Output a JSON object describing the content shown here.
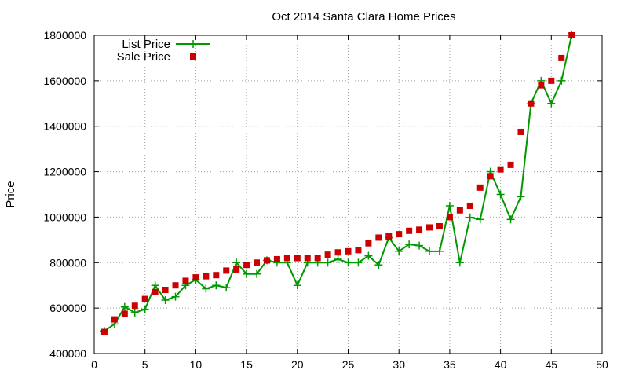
{
  "chart_data": {
    "type": "line",
    "title": "Oct 2014 Santa Clara Home Prices",
    "xlabel": "",
    "ylabel": "Price",
    "xlim": [
      0,
      50
    ],
    "ylim": [
      400000,
      1800000
    ],
    "x_ticks": [
      0,
      5,
      10,
      15,
      20,
      25,
      30,
      35,
      40,
      45,
      50
    ],
    "y_ticks": [
      400000,
      600000,
      800000,
      1000000,
      1200000,
      1400000,
      1600000,
      1800000
    ],
    "grid": true,
    "legend_position": "top-left",
    "series": [
      {
        "name": "List Price",
        "style": "line-with-plus-markers",
        "color": "#009900",
        "x": [
          1,
          2,
          3,
          4,
          5,
          6,
          7,
          8,
          9,
          10,
          11,
          12,
          13,
          14,
          15,
          16,
          17,
          18,
          19,
          20,
          21,
          22,
          23,
          24,
          25,
          26,
          27,
          28,
          29,
          30,
          31,
          32,
          33,
          34,
          35,
          36,
          37,
          38,
          39,
          40,
          41,
          42,
          43,
          44,
          45,
          46,
          47
        ],
        "values": [
          499000,
          530000,
          605000,
          580000,
          595000,
          700000,
          635000,
          650000,
          700000,
          725000,
          685000,
          700000,
          690000,
          800000,
          750000,
          750000,
          810000,
          800000,
          800000,
          700000,
          800000,
          800000,
          800000,
          815000,
          800000,
          800000,
          830000,
          790000,
          910000,
          850000,
          880000,
          875000,
          850000,
          850000,
          1050000,
          800000,
          999000,
          990000,
          1200000,
          1100000,
          990000,
          1090000,
          1500000,
          1600000,
          1500000,
          1600000,
          1800000
        ]
      },
      {
        "name": "Sale Price",
        "style": "square-markers",
        "color": "#cc0000",
        "x": [
          1,
          2,
          3,
          4,
          5,
          6,
          7,
          8,
          9,
          10,
          11,
          12,
          13,
          14,
          15,
          16,
          17,
          18,
          19,
          20,
          21,
          22,
          23,
          24,
          25,
          26,
          27,
          28,
          29,
          30,
          31,
          32,
          33,
          34,
          35,
          36,
          37,
          38,
          39,
          40,
          41,
          42,
          43,
          44,
          45,
          46,
          47
        ],
        "values": [
          495000,
          550000,
          575000,
          610000,
          640000,
          670000,
          680000,
          700000,
          720000,
          735000,
          740000,
          745000,
          765000,
          770000,
          790000,
          800000,
          810000,
          815000,
          820000,
          820000,
          820000,
          820000,
          835000,
          845000,
          850000,
          855000,
          885000,
          910000,
          915000,
          925000,
          940000,
          945000,
          955000,
          960000,
          1000000,
          1030000,
          1050000,
          1130000,
          1180000,
          1210000,
          1230000,
          1375000,
          1500000,
          1580000,
          1600000,
          1700000,
          1800000
        ]
      }
    ]
  }
}
